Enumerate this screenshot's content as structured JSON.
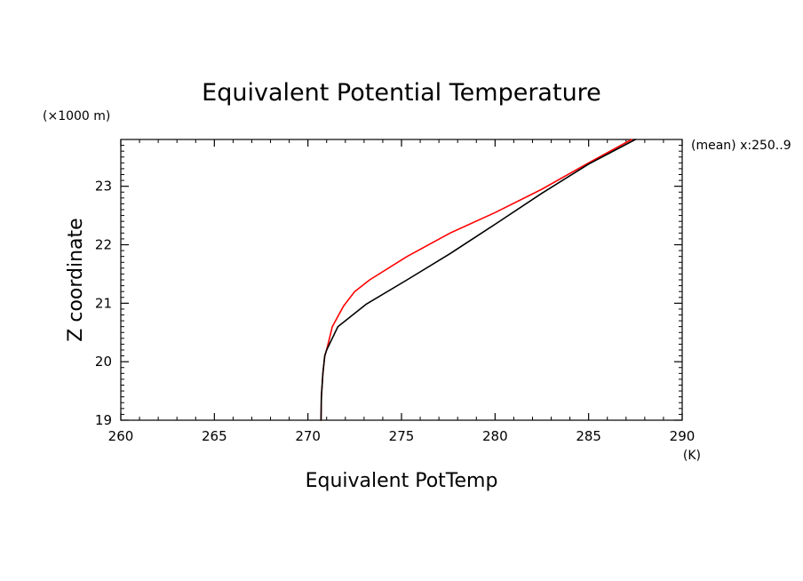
{
  "chart_data": {
    "type": "line",
    "title": "Equivalent Potential Temperature",
    "xlabel": "Equivalent PotTemp",
    "x_units": "(K)",
    "ylabel": "Z coordinate",
    "y_units": "(×1000 m)",
    "annotation": "(mean) x:250..9",
    "xlim": [
      260,
      290
    ],
    "ylim": [
      19,
      23.8
    ],
    "x_ticks": [
      {
        "value": 260,
        "label": "260"
      },
      {
        "value": 265,
        "label": "265"
      },
      {
        "value": 270,
        "label": "270"
      },
      {
        "value": 275,
        "label": "275"
      },
      {
        "value": 280,
        "label": "280"
      },
      {
        "value": 285,
        "label": "285"
      },
      {
        "value": 290,
        "label": "290"
      }
    ],
    "y_ticks": [
      {
        "value": 19,
        "label": "19"
      },
      {
        "value": 20,
        "label": "20"
      },
      {
        "value": 21,
        "label": "21"
      },
      {
        "value": 22,
        "label": "22"
      },
      {
        "value": 23,
        "label": "23"
      }
    ],
    "grid": false,
    "series": [
      {
        "color": "#ff0000",
        "points": [
          [
            270.7,
            19.0
          ],
          [
            270.72,
            19.4
          ],
          [
            270.8,
            19.8
          ],
          [
            270.9,
            20.1
          ],
          [
            271.0,
            20.2
          ],
          [
            271.3,
            20.6
          ],
          [
            271.9,
            20.95
          ],
          [
            272.5,
            21.2
          ],
          [
            273.3,
            21.4
          ],
          [
            275.3,
            21.8
          ],
          [
            277.6,
            22.2
          ],
          [
            280.0,
            22.55
          ],
          [
            282.5,
            22.95
          ],
          [
            285.0,
            23.4
          ],
          [
            287.3,
            23.8
          ]
        ]
      },
      {
        "color": "#000000",
        "points": [
          [
            270.7,
            19.0
          ],
          [
            270.72,
            19.4
          ],
          [
            270.8,
            19.8
          ],
          [
            270.9,
            20.1
          ],
          [
            271.0,
            20.2
          ],
          [
            271.6,
            20.6
          ],
          [
            273.1,
            20.98
          ],
          [
            275.3,
            21.4
          ],
          [
            277.6,
            21.85
          ],
          [
            280.0,
            22.35
          ],
          [
            282.5,
            22.88
          ],
          [
            285.0,
            23.38
          ],
          [
            287.5,
            23.8
          ]
        ]
      }
    ]
  }
}
